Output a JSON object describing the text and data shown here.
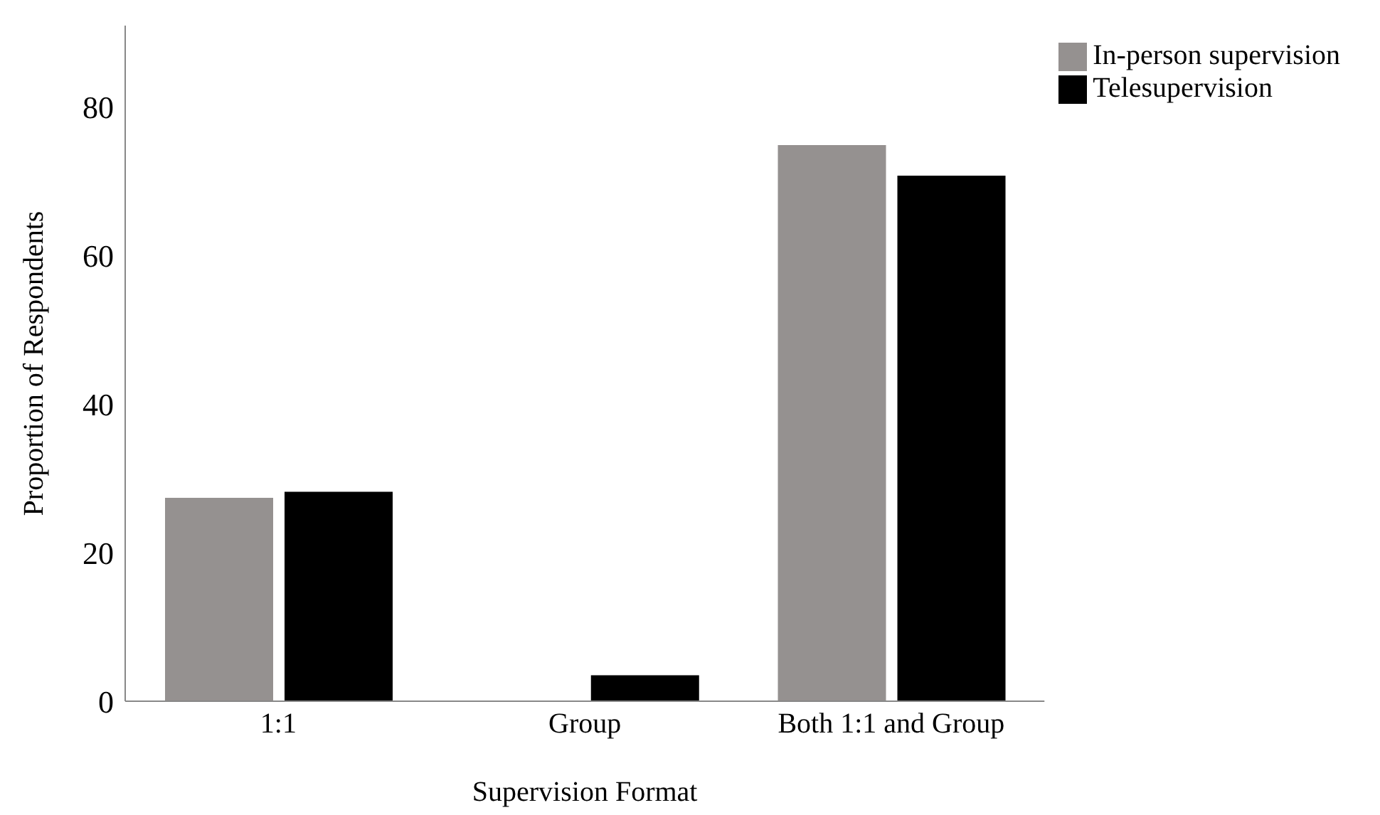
{
  "chart_data": {
    "type": "bar",
    "xlabel": "Supervision Format",
    "ylabel": "Proportion of Respondents",
    "categories": [
      "1:1",
      "Group",
      "Both 1:1 and Group"
    ],
    "series": [
      {
        "name": "In-person supervision",
        "color": "#959190",
        "values": [
          27.4,
          0,
          74.9
        ]
      },
      {
        "name": "Telesupervision",
        "color": "#000000",
        "values": [
          28.2,
          3.5,
          70.8
        ]
      }
    ],
    "ylim": [
      0,
      91
    ],
    "yticks": [
      0,
      20,
      40,
      60,
      80
    ],
    "grid": false,
    "legend": "top right"
  }
}
